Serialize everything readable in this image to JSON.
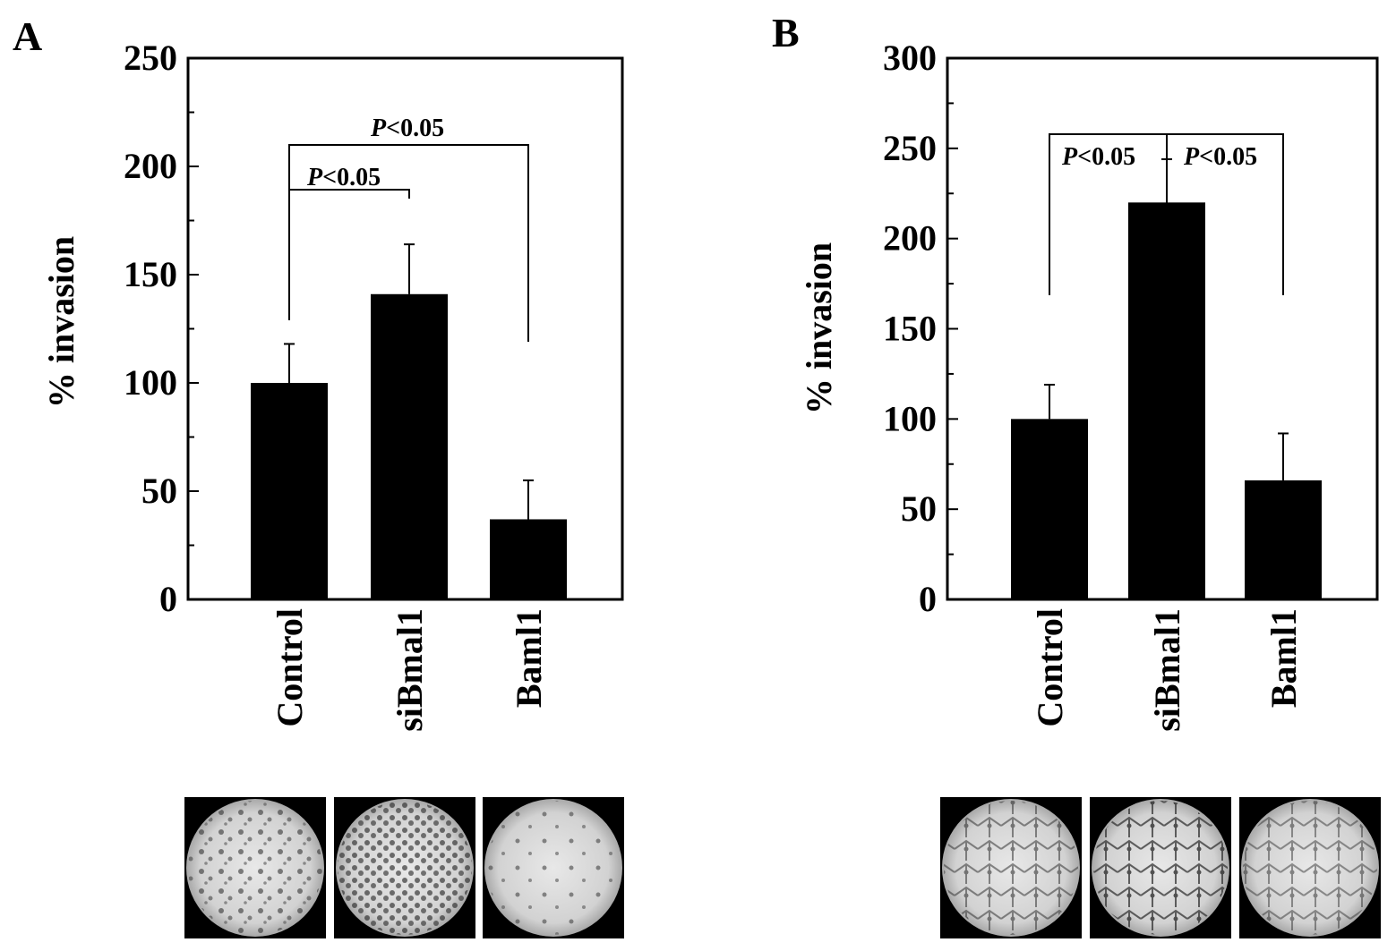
{
  "chart_data": [
    {
      "panel": "A",
      "type": "bar",
      "ylabel": "% invasion",
      "ylim": [
        0,
        250
      ],
      "yticks": [
        0,
        50,
        100,
        150,
        200,
        250
      ],
      "categories": [
        "Control",
        "siBmal1",
        "Baml1"
      ],
      "values": [
        100,
        141,
        37
      ],
      "errors": [
        18,
        23,
        18
      ],
      "bar_color": "#000000",
      "significance": [
        {
          "text_p": "P",
          "text_rest": "<0.05",
          "from": 0,
          "to": 1
        },
        {
          "text_p": "P",
          "text_rest": "<0.05",
          "from": 0,
          "to": 2
        }
      ],
      "images": [
        "Control invasion image",
        "siBmal1 invasion image",
        "Baml1 invasion image"
      ]
    },
    {
      "panel": "B",
      "type": "bar",
      "ylabel": "% invasion",
      "ylim": [
        0,
        300
      ],
      "yticks": [
        0,
        50,
        100,
        150,
        200,
        250,
        300
      ],
      "categories": [
        "Control",
        "siBmal1",
        "Baml1"
      ],
      "values": [
        100,
        220,
        66
      ],
      "errors": [
        19,
        24,
        26
      ],
      "bar_color": "#000000",
      "significance": [
        {
          "text_p": "P",
          "text_rest": "<0.05",
          "from": 0,
          "to": 1
        },
        {
          "text_p": "P",
          "text_rest": "<0.05",
          "from": 1,
          "to": 2
        }
      ],
      "images": [
        "Control invasion image",
        "siBmal1 invasion image",
        "Baml1 invasion image"
      ]
    }
  ]
}
